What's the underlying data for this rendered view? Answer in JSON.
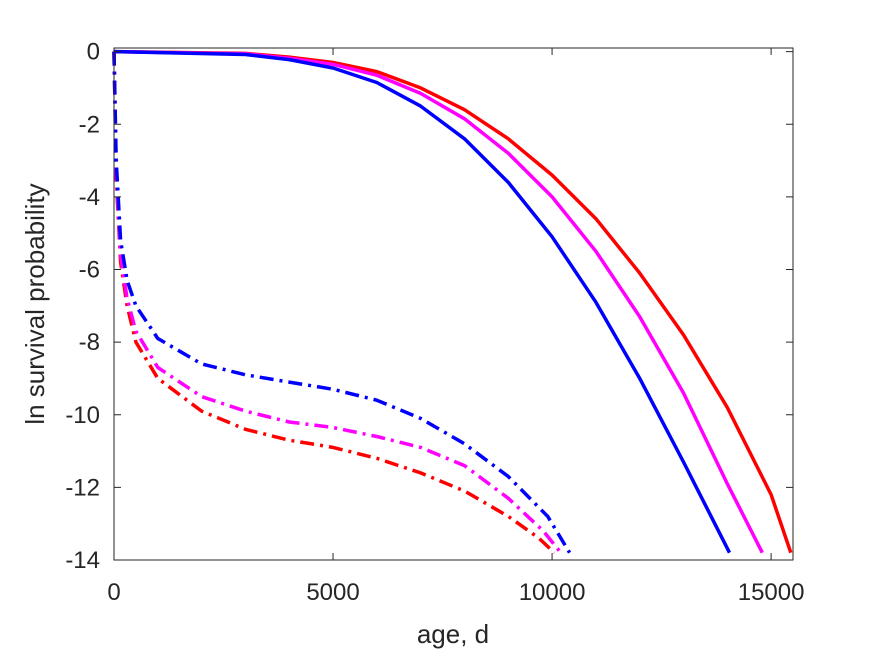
{
  "chart_data": {
    "type": "line",
    "title": "",
    "xlabel": "age, d",
    "ylabel": "ln survival probability",
    "xlim": [
      0,
      15500
    ],
    "ylim": [
      -14,
      0.1
    ],
    "xticks": [
      0,
      5000,
      10000,
      15000
    ],
    "xtick_labels": [
      "0",
      "5000",
      "10000",
      "15000"
    ],
    "yticks": [
      0,
      -2,
      -4,
      -6,
      -8,
      -10,
      -12,
      -14
    ],
    "ytick_labels": [
      "0",
      "-2",
      "-4",
      "-6",
      "-8",
      "-10",
      "-12",
      "-14"
    ],
    "grid": false,
    "legend": "none",
    "series": [
      {
        "color": "#ff0000",
        "style": "solid",
        "x": [
          0,
          3000,
          4000,
          5000,
          6000,
          7000,
          8000,
          9000,
          10000,
          11000,
          12000,
          13000,
          14000,
          15000,
          15450
        ],
        "y": [
          0,
          -0.05,
          -0.15,
          -0.3,
          -0.55,
          -1.0,
          -1.6,
          -2.4,
          -3.4,
          -4.6,
          -6.1,
          -7.8,
          -9.8,
          -12.2,
          -13.8
        ]
      },
      {
        "color": "#ff00ff",
        "style": "solid",
        "x": [
          0,
          3000,
          4000,
          5000,
          6000,
          7000,
          8000,
          9000,
          10000,
          11000,
          12000,
          13000,
          14000,
          14800
        ],
        "y": [
          0,
          -0.06,
          -0.18,
          -0.35,
          -0.65,
          -1.15,
          -1.85,
          -2.8,
          -4.0,
          -5.5,
          -7.3,
          -9.4,
          -11.9,
          -13.8
        ]
      },
      {
        "color": "#0000ff",
        "style": "solid",
        "x": [
          0,
          3000,
          4000,
          5000,
          6000,
          7000,
          8000,
          9000,
          10000,
          11000,
          12000,
          13000,
          14050
        ],
        "y": [
          0,
          -0.08,
          -0.22,
          -0.45,
          -0.85,
          -1.5,
          -2.4,
          -3.6,
          -5.1,
          -6.9,
          -9.0,
          -11.3,
          -13.8
        ]
      },
      {
        "color": "#ff0000",
        "style": "dashdot",
        "x": [
          0,
          50,
          150,
          300,
          500,
          1000,
          2000,
          3000,
          4000,
          5000,
          6000,
          7000,
          8000,
          9000,
          9700,
          10050
        ],
        "y": [
          0,
          -3.5,
          -5.8,
          -7.0,
          -8.0,
          -9.0,
          -9.9,
          -10.4,
          -10.7,
          -10.9,
          -11.2,
          -11.6,
          -12.1,
          -12.8,
          -13.4,
          -13.8
        ]
      },
      {
        "color": "#ff00ff",
        "style": "dashdot",
        "x": [
          0,
          50,
          150,
          300,
          500,
          1000,
          2000,
          3000,
          4000,
          5000,
          6000,
          7000,
          8000,
          9000,
          9800,
          10200
        ],
        "y": [
          0,
          -3.3,
          -5.6,
          -6.8,
          -7.7,
          -8.7,
          -9.5,
          -9.9,
          -10.2,
          -10.35,
          -10.6,
          -10.9,
          -11.4,
          -12.3,
          -13.2,
          -13.8
        ]
      },
      {
        "color": "#0000ff",
        "style": "dashdot",
        "x": [
          0,
          50,
          150,
          300,
          500,
          1000,
          2000,
          3000,
          4000,
          5000,
          6000,
          7000,
          8000,
          9000,
          9900,
          10400
        ],
        "y": [
          0,
          -3.0,
          -5.2,
          -6.3,
          -7.0,
          -7.9,
          -8.6,
          -8.9,
          -9.1,
          -9.3,
          -9.6,
          -10.1,
          -10.8,
          -11.7,
          -12.8,
          -13.8
        ]
      }
    ]
  }
}
